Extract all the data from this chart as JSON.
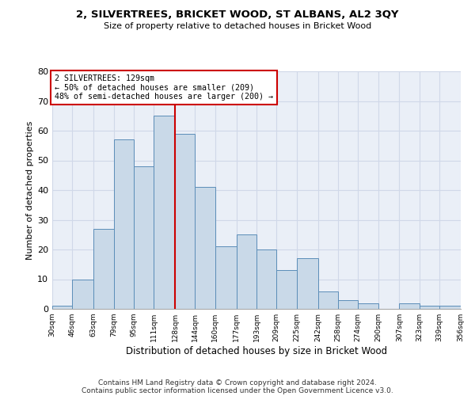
{
  "title1": "2, SILVERTREES, BRICKET WOOD, ST ALBANS, AL2 3QY",
  "title2": "Size of property relative to detached houses in Bricket Wood",
  "xlabel": "Distribution of detached houses by size in Bricket Wood",
  "ylabel": "Number of detached properties",
  "footer1": "Contains HM Land Registry data © Crown copyright and database right 2024.",
  "footer2": "Contains public sector information licensed under the Open Government Licence v3.0.",
  "annotation_line1": "2 SILVERTREES: 129sqm",
  "annotation_line2": "← 50% of detached houses are smaller (209)",
  "annotation_line3": "48% of semi-detached houses are larger (200) →",
  "bar_color": "#c9d9e8",
  "bar_edge_color": "#5b8db8",
  "vline_color": "#cc0000",
  "vline_x": 128,
  "bin_edges": [
    30,
    46,
    63,
    79,
    95,
    111,
    128,
    144,
    160,
    177,
    193,
    209,
    225,
    242,
    258,
    274,
    290,
    307,
    323,
    339,
    356
  ],
  "bar_heights": [
    1,
    10,
    27,
    57,
    48,
    65,
    59,
    41,
    21,
    25,
    20,
    13,
    17,
    6,
    3,
    2,
    0,
    2,
    1,
    1
  ],
  "xlim": [
    30,
    356
  ],
  "ylim": [
    0,
    80
  ],
  "yticks": [
    0,
    10,
    20,
    30,
    40,
    50,
    60,
    70,
    80
  ],
  "xtick_labels": [
    "30sqm",
    "46sqm",
    "63sqm",
    "79sqm",
    "95sqm",
    "111sqm",
    "128sqm",
    "144sqm",
    "160sqm",
    "177sqm",
    "193sqm",
    "209sqm",
    "225sqm",
    "242sqm",
    "258sqm",
    "274sqm",
    "290sqm",
    "307sqm",
    "323sqm",
    "339sqm",
    "356sqm"
  ],
  "grid_color": "#d0d8e8",
  "bg_color": "#eaeff7"
}
